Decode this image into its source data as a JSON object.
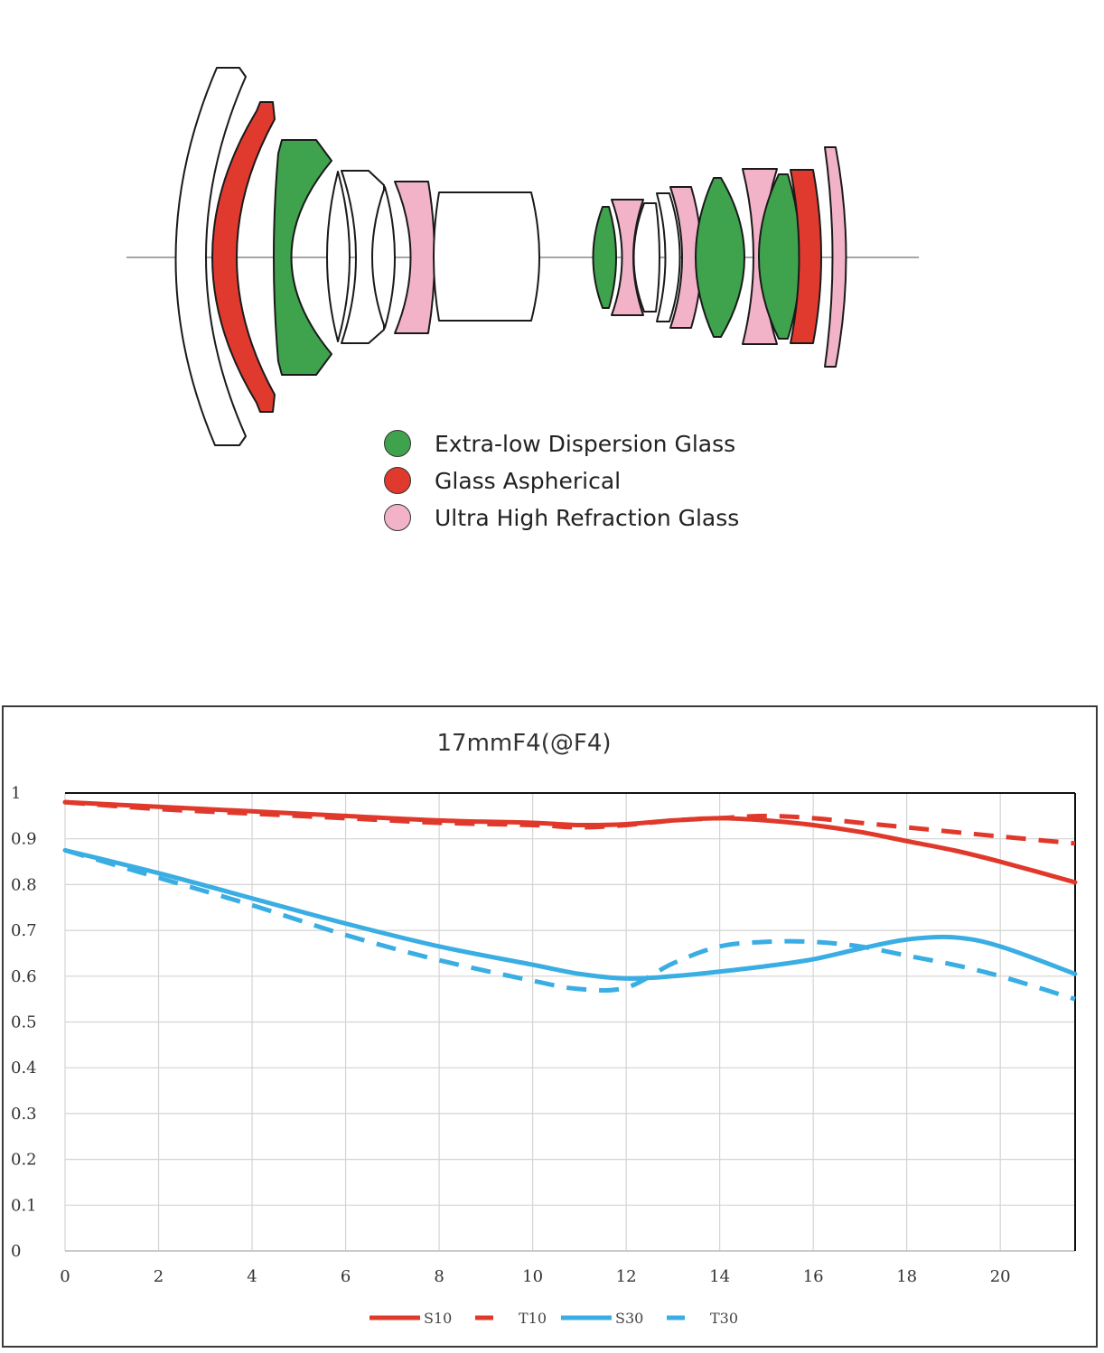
{
  "diagram": {
    "legend": [
      {
        "label": "Extra-low Dispersion Glass",
        "color": "#3fa34d"
      },
      {
        "label": "Glass Aspherical",
        "color": "#e03a2f"
      },
      {
        "label": "Ultra High Refraction Glass",
        "color": "#f2b3c8"
      }
    ],
    "colors": {
      "ed": "#3fa34d",
      "asph": "#e03a2f",
      "uhr": "#f2b3c8",
      "plain": "#ffffff"
    }
  },
  "chart_data": {
    "type": "line",
    "title": "17mmF4(@F4)",
    "xlim": [
      0,
      21.6
    ],
    "ylim": [
      0,
      1
    ],
    "x_ticks": [
      "0",
      "2",
      "4",
      "6",
      "8",
      "10",
      "12",
      "14",
      "16",
      "18",
      "20"
    ],
    "y_ticks": [
      "0",
      "0.1",
      "0.2",
      "0.3",
      "0.4",
      "0.5",
      "0.6",
      "0.7",
      "0.8",
      "0.9",
      "1"
    ],
    "grid": true,
    "legend_position": "bottom",
    "series": [
      {
        "name": "S10",
        "color": "#e0392b",
        "dashed": false,
        "x": [
          0,
          2,
          4,
          6,
          8,
          10,
          11,
          12,
          13,
          14,
          15,
          16,
          17,
          18,
          19,
          20,
          21.6
        ],
        "y": [
          0.98,
          0.97,
          0.96,
          0.95,
          0.94,
          0.935,
          0.93,
          0.932,
          0.94,
          0.945,
          0.94,
          0.93,
          0.915,
          0.895,
          0.875,
          0.85,
          0.805
        ]
      },
      {
        "name": "T10",
        "color": "#e0392b",
        "dashed": true,
        "x": [
          0,
          2,
          4,
          6,
          8,
          10,
          11,
          12,
          13,
          14,
          15,
          16,
          17,
          18,
          19,
          20,
          21.6
        ],
        "y": [
          0.98,
          0.965,
          0.955,
          0.945,
          0.935,
          0.93,
          0.925,
          0.93,
          0.94,
          0.945,
          0.95,
          0.945,
          0.935,
          0.925,
          0.915,
          0.905,
          0.89
        ]
      },
      {
        "name": "S30",
        "color": "#3aaee3",
        "dashed": false,
        "x": [
          0,
          2,
          4,
          6,
          8,
          10,
          11,
          12,
          13,
          14,
          15,
          16,
          17,
          18,
          19,
          20,
          21.6
        ],
        "y": [
          0.875,
          0.825,
          0.77,
          0.715,
          0.665,
          0.625,
          0.605,
          0.595,
          0.6,
          0.61,
          0.622,
          0.637,
          0.66,
          0.68,
          0.685,
          0.665,
          0.605
        ]
      },
      {
        "name": "T30",
        "color": "#3aaee3",
        "dashed": true,
        "x": [
          0,
          2,
          4,
          6,
          8,
          10,
          11,
          12,
          13,
          14,
          15,
          16,
          17,
          18,
          19,
          20,
          21.6
        ],
        "y": [
          0.875,
          0.815,
          0.755,
          0.69,
          0.635,
          0.59,
          0.572,
          0.575,
          0.628,
          0.665,
          0.675,
          0.675,
          0.665,
          0.645,
          0.625,
          0.6,
          0.55
        ]
      }
    ]
  }
}
